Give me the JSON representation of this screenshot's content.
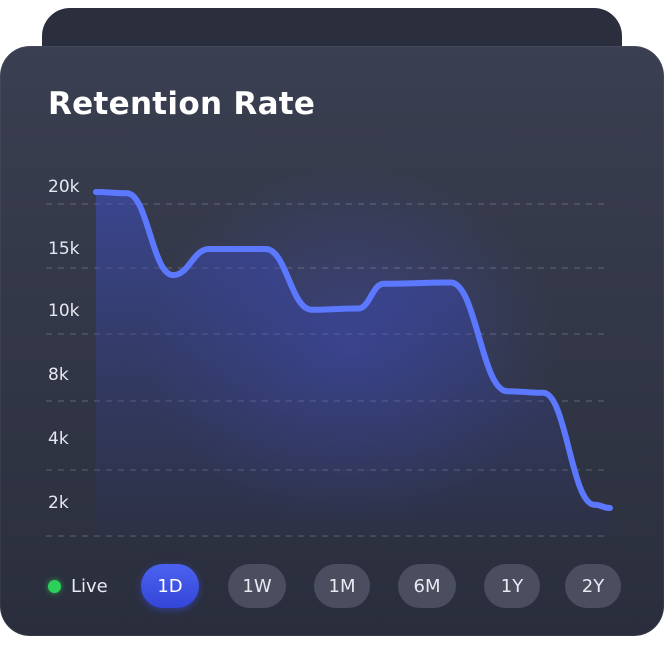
{
  "card": {
    "title": "Retention Rate"
  },
  "legend": {
    "live_label": "Live",
    "live_color": "#2bd15a"
  },
  "ranges": [
    "1D",
    "1W",
    "1M",
    "6M",
    "1Y",
    "2Y"
  ],
  "active_range": "1D",
  "colors": {
    "line": "#5b78ff",
    "accent": "#3d52e6"
  },
  "chart_data": {
    "type": "line",
    "title": "Retention Rate",
    "xlabel": "",
    "ylabel": "",
    "y_ticks": [
      "20k",
      "15k",
      "10k",
      "8k",
      "4k",
      "2k"
    ],
    "grid": true,
    "series": [
      {
        "values": [
          {
            "x": 0.0,
            "y": 20.0
          },
          {
            "x": 0.06,
            "y": 19.9
          },
          {
            "x": 0.15,
            "y": 13.3
          },
          {
            "x": 0.22,
            "y": 15.4
          },
          {
            "x": 0.33,
            "y": 15.4
          },
          {
            "x": 0.42,
            "y": 10.5
          },
          {
            "x": 0.51,
            "y": 10.6
          },
          {
            "x": 0.56,
            "y": 12.6
          },
          {
            "x": 0.69,
            "y": 12.7
          },
          {
            "x": 0.8,
            "y": 7.3
          },
          {
            "x": 0.87,
            "y": 7.2
          },
          {
            "x": 0.97,
            "y": 2.1
          },
          {
            "x": 1.0,
            "y": 2.0
          }
        ]
      }
    ]
  }
}
